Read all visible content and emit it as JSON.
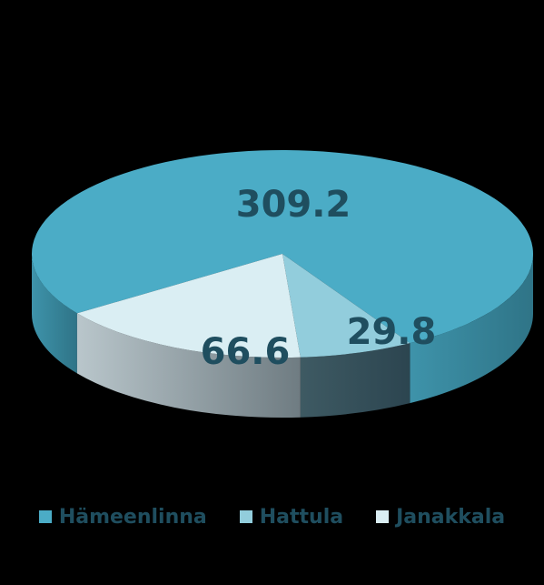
{
  "chart_data": {
    "type": "pie",
    "title": "",
    "three_d": true,
    "legend_position": "bottom",
    "slices": [
      {
        "name": "Hämeenlinna",
        "value": 309.2,
        "label": "309.2",
        "color": "#4bacc6"
      },
      {
        "name": "Hattula",
        "value": 29.8,
        "label": "29.8",
        "color": "#92cddc"
      },
      {
        "name": "Janakkala",
        "value": 66.6,
        "label": "66.6",
        "color": "#daeef3"
      }
    ]
  }
}
